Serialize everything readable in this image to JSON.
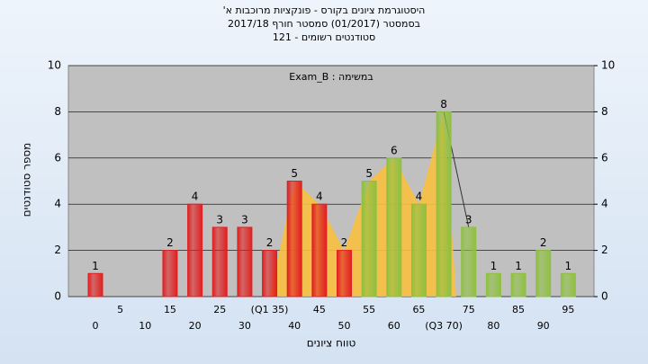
{
  "chart_data": {
    "type": "bar",
    "title": [
      "היסטוגרמת ציונים בקורס - פונקציות מרוכבות א'",
      "בסמסטר (01/2017) סמסטר חורף 2017/18",
      "סטודנטים רשומים - 121"
    ],
    "annotation": "במשימה : Exam_B",
    "x_label": "טווח ציונים",
    "y_label": "מספר סטודנטים",
    "categories": [
      "0",
      "5",
      "10",
      "15",
      "20",
      "25",
      "30",
      "(Q1 35)",
      "40",
      "45",
      "50",
      "55",
      "60",
      "65",
      "(Q3 70)",
      "75",
      "80",
      "85",
      "90",
      "95"
    ],
    "values": [
      1,
      0,
      0,
      2,
      4,
      3,
      3,
      2,
      5,
      4,
      2,
      5,
      6,
      4,
      8,
      3,
      1,
      1,
      2,
      1
    ],
    "colors": [
      "#e02020",
      "#e02020",
      "#e02020",
      "#e02020",
      "#e02020",
      "#e02020",
      "#e02020",
      "#e02020",
      "#e02020",
      "#e02020",
      "#e02020",
      "#8fc040",
      "#8fc040",
      "#8fc040",
      "#8fc040",
      "#8fc040",
      "#8fc040",
      "#8fc040",
      "#8fc040",
      "#8fc040"
    ],
    "area_color": "#f8c040",
    "ylim": [
      0,
      10
    ],
    "yticks": [
      0,
      2,
      4,
      6,
      8,
      10
    ],
    "y2lim": [
      0,
      10
    ],
    "y2ticks": [
      0,
      2,
      4,
      6,
      8,
      10
    ],
    "grid": true
  }
}
